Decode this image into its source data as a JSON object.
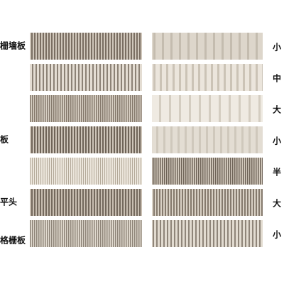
{
  "left_labels": [
    "栅墙板",
    "板",
    "平头",
    "格栅板"
  ],
  "right_labels": [
    "小",
    "中",
    "大",
    "小",
    "半",
    "大",
    "小"
  ]
}
